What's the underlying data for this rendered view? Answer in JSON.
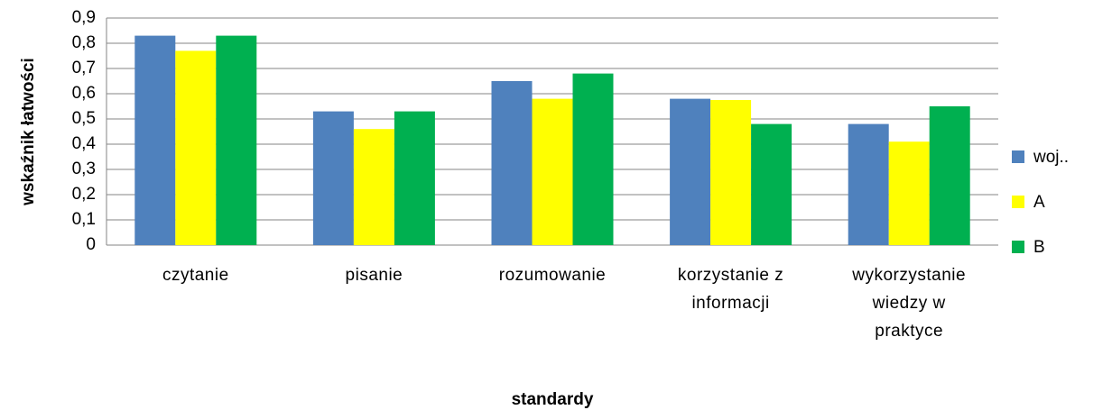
{
  "chart_data": {
    "type": "bar",
    "xlabel": "standardy",
    "ylabel": "wskaźnik łatwości",
    "categories": [
      "czytanie",
      "pisanie",
      "rozumowanie",
      "korzystanie z informacji",
      "wykorzystanie wiedzy w praktyce"
    ],
    "series": [
      {
        "name": "woj..",
        "color": "#4f81bd",
        "values": [
          0.83,
          0.53,
          0.65,
          0.58,
          0.48
        ]
      },
      {
        "name": "A",
        "color": "#ffff00",
        "values": [
          0.77,
          0.46,
          0.58,
          0.575,
          0.41
        ]
      },
      {
        "name": "B",
        "color": "#00b050",
        "values": [
          0.83,
          0.53,
          0.68,
          0.48,
          0.55
        ]
      }
    ],
    "ylim": [
      0,
      0.9
    ],
    "yticks": [
      0,
      {
        "value": 0.1,
        "label": "0,1"
      },
      {
        "value": 0.2,
        "label": "0,2"
      },
      {
        "value": 0.3,
        "label": "0,3"
      },
      {
        "value": 0.4,
        "label": "0,4"
      },
      {
        "value": 0.5,
        "label": "0,5"
      },
      {
        "value": 0.6,
        "label": "0,6"
      },
      {
        "value": 0.7,
        "label": "0,7"
      },
      {
        "value": 0.8,
        "label": "0,8"
      },
      {
        "value": 0.9,
        "label": "0,9"
      }
    ],
    "grid": true,
    "legend": "right"
  }
}
